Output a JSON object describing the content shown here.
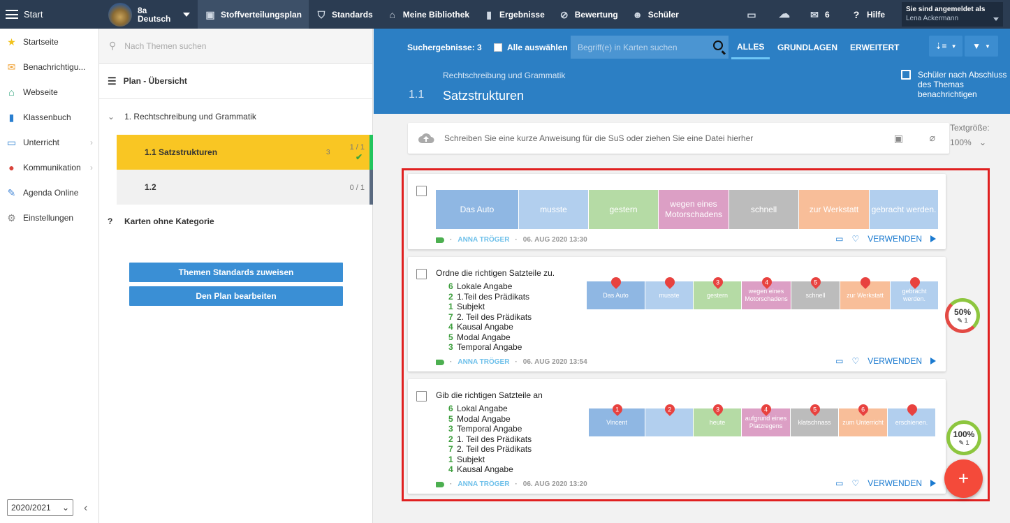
{
  "topbar": {
    "start": "Start",
    "class_name": "8a",
    "class_subject": "Deutsch",
    "nav": [
      {
        "label": "Stoffverteilungsplan",
        "icon": "briefcase-icon",
        "active": true
      },
      {
        "label": "Standards",
        "icon": "shield-icon"
      },
      {
        "label": "Meine Bibliothek",
        "icon": "library-icon"
      },
      {
        "label": "Ergebnisse",
        "icon": "bar-chart-icon"
      },
      {
        "label": "Bewertung",
        "icon": "rating-icon"
      },
      {
        "label": "Schüler",
        "icon": "students-icon"
      }
    ],
    "mail_count": "6",
    "help": "Hilfe",
    "login_label": "Sie sind angemeldet als",
    "login_name": "Lena Ackermann"
  },
  "sidebar": {
    "items": [
      {
        "label": "Startseite",
        "icon": "star-icon",
        "color": "#f2c21b"
      },
      {
        "label": "Benachrichtigu...",
        "icon": "envelope-icon",
        "color": "#f0a030"
      },
      {
        "label": "Webseite",
        "icon": "house-icon",
        "color": "#2aa178"
      },
      {
        "label": "Klassenbuch",
        "icon": "book-icon",
        "color": "#2a7fd0"
      },
      {
        "label": "Unterricht",
        "icon": "open-book-icon",
        "color": "#2a7fd0",
        "chevron": true
      },
      {
        "label": "Kommunikation",
        "icon": "chat-icon",
        "color": "#d9443b",
        "chevron": true
      },
      {
        "label": "Agenda Online",
        "icon": "pen-icon",
        "color": "#4a8bd8"
      },
      {
        "label": "Einstellungen",
        "icon": "gear-icon",
        "color": "#888"
      }
    ],
    "year": "2020/2021"
  },
  "tree": {
    "search_placeholder": "Nach Themen suchen",
    "overview": "Plan - Übersicht",
    "chapter": "1. Rechtschreibung und Grammatik",
    "topics": [
      {
        "label": "1.1  Satzstrukturen",
        "count": "1 / 1",
        "num": "3",
        "active": true
      },
      {
        "label": "1.2",
        "count": "0 / 1",
        "num": "",
        "active": false
      }
    ],
    "uncategorized": "Karten ohne Kategorie",
    "btn_standards": "Themen Standards zuweisen",
    "btn_edit": "Den Plan bearbeiten"
  },
  "main": {
    "results": "Suchergebnisse: 3",
    "select_all": "Alle auswählen",
    "search_placeholder": "Begriff(e) in Karten suchen",
    "tabs": [
      "ALLES",
      "GRUNDLAGEN",
      "ERWEITERT"
    ],
    "breadcrumb": "Rechtschreibung und Grammatik",
    "topic_num": "1.1",
    "topic_title": "Satzstrukturen",
    "notify": "Schüler nach Abschluss des Themas benachrichtigen",
    "upload_text": "Schreiben Sie eine kurze Anweisung für die SuS oder ziehen Sie eine Datei hierher",
    "text_size_label": "Textgröße:",
    "text_size": "100%",
    "use_label": "VERWENDEN"
  },
  "cards": [
    {
      "question": "",
      "tiles": [
        "Das Auto",
        "musste",
        "gestern",
        "wegen eines Motorschadens",
        "schnell",
        "zur Werkstatt",
        "gebracht werden."
      ],
      "author": "ANNA TRÖGER",
      "date": "06. AUG 2020 13:30"
    },
    {
      "question": "Ordne die richtigen Satzteile zu.",
      "list": [
        {
          "n": "6",
          "t": "Lokale Angabe"
        },
        {
          "n": "2",
          "t": "1.Teil des Prädikats"
        },
        {
          "n": "1",
          "t": "Subjekt"
        },
        {
          "n": "7",
          "t": "2. Teil des Prädikats"
        },
        {
          "n": "4",
          "t": "Kausal Angabe"
        },
        {
          "n": "5",
          "t": "Modal Angabe"
        },
        {
          "n": "3",
          "t": "Temporal Angabe"
        }
      ],
      "tiles": [
        "Das Auto",
        "musste",
        "gestern",
        "wegen eines Motorschadens",
        "schnell",
        "zur Werkstatt",
        "gebracht werden."
      ],
      "pins": [
        "",
        "",
        "3",
        "4",
        "5",
        "",
        ""
      ],
      "author": "ANNA TRÖGER",
      "date": "06. AUG 2020 13:54",
      "progress": "50%",
      "edits": "1"
    },
    {
      "question": "Gib die richtigen Satzteile an",
      "list": [
        {
          "n": "6",
          "t": "Lokal Angabe"
        },
        {
          "n": "5",
          "t": "Modal Angabe"
        },
        {
          "n": "3",
          "t": "Temporal Angabe"
        },
        {
          "n": "2",
          "t": "1. Teil des Prädikats"
        },
        {
          "n": "7",
          "t": "2. Teil des Prädikats"
        },
        {
          "n": "1",
          "t": "Subjekt"
        },
        {
          "n": "4",
          "t": "Kausal Angabe"
        }
      ],
      "tiles": [
        "Vincent",
        "",
        "heute",
        "aufgrund eines Platzregens",
        "klatschnass",
        "zum Unterricht",
        "erschienen."
      ],
      "pins": [
        "1",
        "2",
        "3",
        "4",
        "5",
        "6",
        ""
      ],
      "author": "ANNA TRÖGER",
      "date": "06. AUG 2020 13:20",
      "progress": "100%",
      "edits": "1"
    }
  ],
  "tile_colors": [
    "#8fb7e3",
    "#b2cfee",
    "#b5dba5",
    "#dc9fc5",
    "#bcbcbc",
    "#f8be99",
    "#b2cfee"
  ]
}
